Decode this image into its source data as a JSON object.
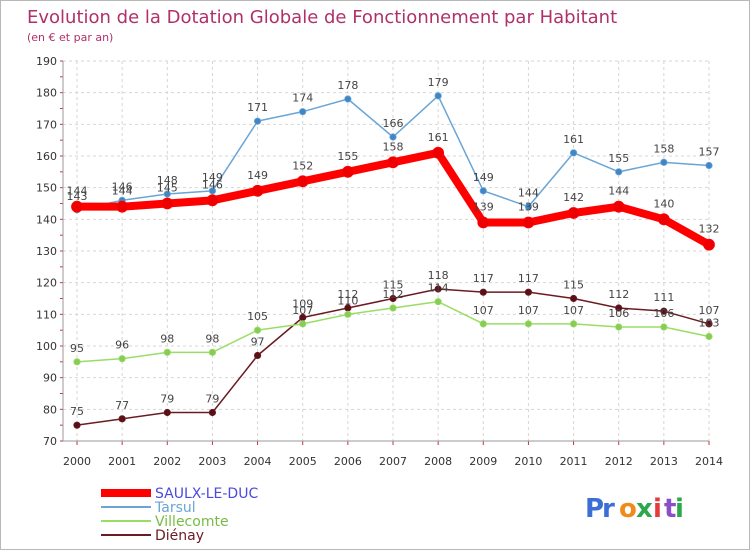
{
  "chart_data": {
    "type": "line",
    "title": "Evolution de la Dotation Globale de Fonctionnement par Habitant",
    "subtitle": "(en € et par an)",
    "categories": [
      "2000",
      "2001",
      "2002",
      "2003",
      "2004",
      "2005",
      "2006",
      "2007",
      "2008",
      "2009",
      "2010",
      "2011",
      "2012",
      "2013",
      "2014"
    ],
    "ylim": [
      70,
      190
    ],
    "yticks": [
      70,
      80,
      90,
      100,
      110,
      120,
      130,
      140,
      150,
      160,
      170,
      180,
      190
    ],
    "grid": true,
    "legend_position": "bottom-left",
    "series": [
      {
        "name": "SAULX-LE-DUC",
        "color": "#ff0000",
        "width": 8,
        "values": [
          144,
          144,
          145,
          146,
          149,
          152,
          155,
          158,
          161,
          139,
          139,
          142,
          144,
          140,
          132
        ]
      },
      {
        "name": "Tarsul",
        "color": "#6aa5d5",
        "width": 1.5,
        "values": [
          143,
          146,
          148,
          149,
          171,
          174,
          178,
          166,
          179,
          149,
          144,
          161,
          155,
          158,
          157
        ]
      },
      {
        "name": "Villecomte",
        "color": "#99dd66",
        "width": 1.5,
        "values": [
          95,
          96,
          98,
          98,
          105,
          107,
          110,
          112,
          114,
          107,
          107,
          107,
          106,
          106,
          103
        ]
      },
      {
        "name": "Diénay",
        "color": "#6b1c22",
        "width": 1.5,
        "values": [
          75,
          77,
          79,
          79,
          97,
          109,
          112,
          115,
          118,
          117,
          117,
          115,
          112,
          111,
          107
        ]
      }
    ]
  },
  "legend_colors": {
    "SAULX-LE-DUC": "#4a4ae0",
    "Tarsul": "#6aa5d5",
    "Villecomte": "#77bb44",
    "Diénay": "#6b1c22"
  },
  "title_color": "#b0306a",
  "logo": {
    "text": "Proxiti"
  }
}
